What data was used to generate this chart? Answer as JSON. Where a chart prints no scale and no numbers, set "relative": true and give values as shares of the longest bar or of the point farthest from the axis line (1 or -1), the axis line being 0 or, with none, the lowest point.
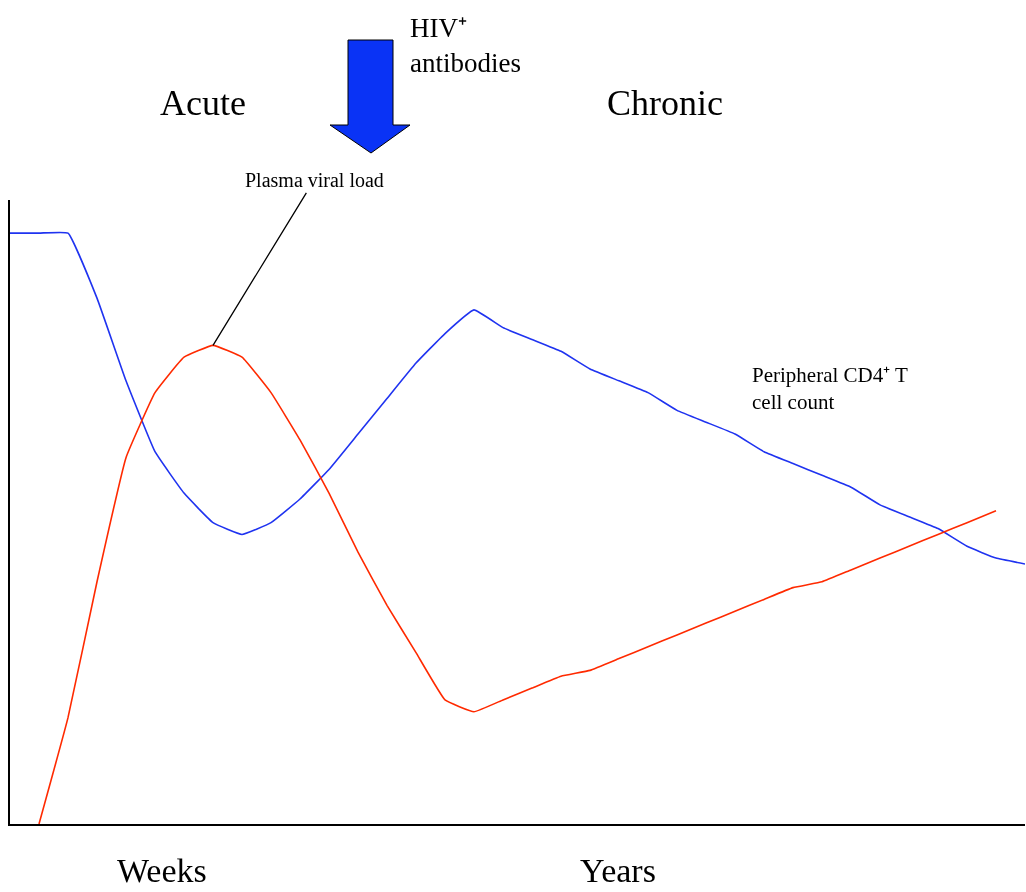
{
  "chart_data": {
    "type": "line",
    "relative": true,
    "categories": [
      null,
      null,
      null,
      null,
      null,
      null,
      null,
      null,
      null,
      null,
      null,
      null,
      null,
      null,
      null,
      null,
      null,
      null,
      null,
      null,
      null,
      null,
      null,
      null,
      null,
      null,
      null,
      null,
      null,
      null,
      null,
      null,
      null,
      null,
      null,
      null
    ],
    "series": [
      {
        "name": "Peripheral CD4⁺ T\ncell count",
        "color": "#1f33f0",
        "values": [
          1,
          1,
          1,
          0.89,
          0.75,
          0.63,
          0.56,
          0.51,
          0.49,
          0.51,
          0.55,
          0.6,
          0.66,
          0.72,
          0.78,
          0.83,
          0.87,
          0.84,
          0.82,
          0.8,
          0.77,
          0.75,
          0.73,
          0.7,
          0.68,
          0.66,
          0.63,
          0.61,
          0.59,
          0.57,
          0.54,
          0.52,
          0.5,
          0.47,
          0.45,
          0.44
        ]
      },
      {
        "name": "Plasma viral load",
        "color": "#ff2a00",
        "values": [
          null,
          0,
          0.18,
          0.41,
          0.62,
          0.73,
          0.79,
          0.81,
          0.79,
          0.73,
          0.65,
          0.56,
          0.46,
          0.37,
          0.29,
          0.21,
          0.19,
          0.21,
          0.23,
          0.25,
          0.26,
          0.28,
          0.3,
          0.32,
          0.34,
          0.36,
          0.38,
          0.4,
          0.41,
          0.43,
          0.45,
          0.47,
          0.49,
          0.51,
          0.53,
          null
        ]
      }
    ],
    "annotations": [
      "Acute",
      "Chronic",
      "HIV⁺\nantibodies",
      "Weeks",
      "Years"
    ],
    "legend": false,
    "marker": "none",
    "line_style": "solid"
  }
}
